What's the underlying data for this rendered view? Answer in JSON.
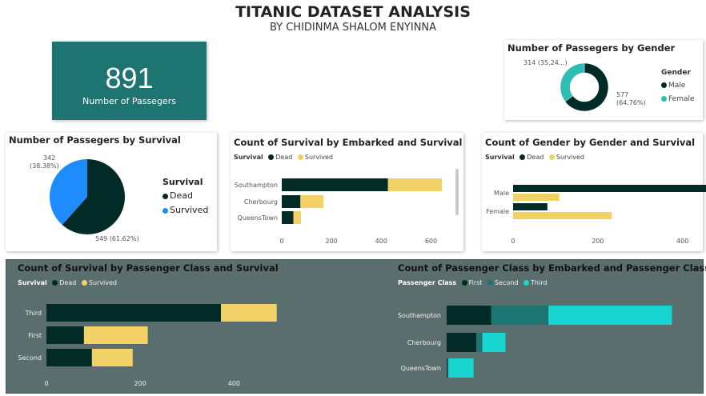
{
  "header": {
    "title": "TITANIC DATASET ANALYSIS",
    "subtitle": "BY CHIDINMA SHALOM ENYINNA"
  },
  "kpi": {
    "value": "891",
    "label": "Number of Passegers"
  },
  "colors": {
    "dead": "#022b28",
    "survived": "#f2d266",
    "male": "#022b28",
    "female": "#2dbdb4",
    "first": "#022b28",
    "second": "#1e7471",
    "third": "#18d6cf",
    "panel": "#5a6e6d"
  },
  "chart_data": [
    {
      "id": "gender_donut",
      "type": "pie",
      "title": "Number of Passegers by Gender",
      "legend_title": "Gender",
      "categories": [
        "Male",
        "Female"
      ],
      "values": [
        577,
        314
      ],
      "data_labels": [
        "577 (64.76%)",
        "314 (35.24...)"
      ],
      "legend": "right"
    },
    {
      "id": "survival_pie",
      "type": "pie",
      "title": "Number of Passegers by Survival",
      "legend_title": "Survival",
      "categories": [
        "Dead",
        "Survived"
      ],
      "values": [
        549,
        342
      ],
      "data_labels": [
        "549 (61.62%)",
        "342 (38.38%)"
      ],
      "legend": "right"
    },
    {
      "id": "embarked_survival",
      "type": "bar",
      "orientation": "horizontal",
      "stacked": true,
      "title": "Count of Survival by Embarked and Survival",
      "legend_title": "Survival",
      "categories": [
        "Southampton",
        "Cherbourg",
        "QueensTown"
      ],
      "series": [
        {
          "name": "Dead",
          "values": [
            427,
            75,
            47
          ]
        },
        {
          "name": "Survived",
          "values": [
            217,
            93,
            30
          ]
        }
      ],
      "xlim": [
        0,
        650
      ],
      "xticks": [
        "0",
        "200",
        "400",
        "600"
      ],
      "legend": "top-left"
    },
    {
      "id": "gender_survival",
      "type": "bar",
      "orientation": "horizontal",
      "stacked": false,
      "title": "Count of Gender by Gender and Survival",
      "legend_title": "Survival",
      "categories": [
        "Male",
        "Female"
      ],
      "series": [
        {
          "name": "Dead",
          "values": [
            468,
            81
          ]
        },
        {
          "name": "Survived",
          "values": [
            109,
            233
          ]
        }
      ],
      "xlim": [
        0,
        480
      ],
      "xticks": [
        "0",
        "200",
        "400"
      ],
      "legend": "top-left"
    },
    {
      "id": "class_survival",
      "type": "bar",
      "orientation": "horizontal",
      "stacked": true,
      "title": "Count of Survival by Passenger Class and Survival",
      "legend_title": "Survival",
      "categories": [
        "Third",
        "First",
        "Second"
      ],
      "series": [
        {
          "name": "Dead",
          "values": [
            372,
            80,
            97
          ]
        },
        {
          "name": "Survived",
          "values": [
            119,
            136,
            87
          ]
        }
      ],
      "xlim": [
        0,
        500
      ],
      "xticks": [
        "0",
        "200",
        "400"
      ],
      "legend": "top-left"
    },
    {
      "id": "class_embarked",
      "type": "bar",
      "orientation": "horizontal",
      "stacked": true,
      "title": "Count of Passenger Class by Embarked and Passenger Class",
      "legend_title": "Passenger Class",
      "categories": [
        "Southampton",
        "Cherbourg",
        "QueensTown"
      ],
      "series": [
        {
          "name": "First",
          "values": [
            127,
            85,
            2
          ]
        },
        {
          "name": "Second",
          "values": [
            164,
            17,
            3
          ]
        },
        {
          "name": "Third",
          "values": [
            353,
            66,
            72
          ]
        }
      ],
      "xlim": [
        0,
        700
      ],
      "legend": "top-left"
    }
  ]
}
